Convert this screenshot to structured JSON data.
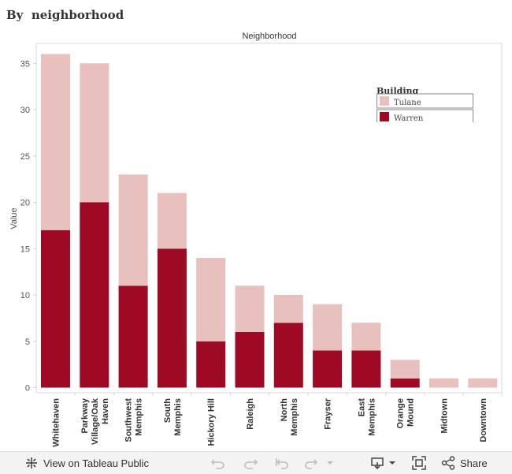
{
  "page": {
    "title": "By  neighborhood"
  },
  "chart_data": {
    "type": "bar",
    "stacked": true,
    "title": "Neighborhood",
    "xlabel": "",
    "ylabel": "Value",
    "ylim": [
      0,
      37.5
    ],
    "yticks": [
      0,
      5,
      10,
      15,
      20,
      25,
      30,
      35
    ],
    "categories": [
      [
        "Whitehaven"
      ],
      [
        "Parkway",
        "Village/Oak",
        "Haven"
      ],
      [
        "Southwest",
        "Memphis"
      ],
      [
        "South",
        "Memphis"
      ],
      [
        "Hickory Hill"
      ],
      [
        "Raleigh"
      ],
      [
        "North",
        "Memphis"
      ],
      [
        "Frayser"
      ],
      [
        "East",
        "Memphis"
      ],
      [
        "Orange",
        "Mound"
      ],
      [
        "Midtown"
      ],
      [
        "Downtown"
      ]
    ],
    "series": [
      {
        "name": "Warren",
        "color": "#9e0a23",
        "values": [
          17,
          20,
          11,
          15,
          5,
          6,
          7,
          4,
          4,
          1,
          0,
          0
        ]
      },
      {
        "name": "Tulane",
        "color": "#e8c0bd",
        "values": [
          19,
          15,
          12,
          6,
          9,
          5,
          3,
          5,
          3,
          2,
          1,
          1
        ]
      }
    ],
    "legend": {
      "title": "Building",
      "position": "top-right",
      "entries": [
        "Tulane",
        "Warren"
      ]
    }
  },
  "toolbar": {
    "view_label": "View on Tableau Public",
    "share_label": "Share",
    "icons": [
      "tableau-logo-icon",
      "undo-icon",
      "redo-icon",
      "revert-icon",
      "refresh-icon",
      "dropdown-icon",
      "download-icon",
      "fullscreen-icon",
      "share-icon"
    ]
  }
}
